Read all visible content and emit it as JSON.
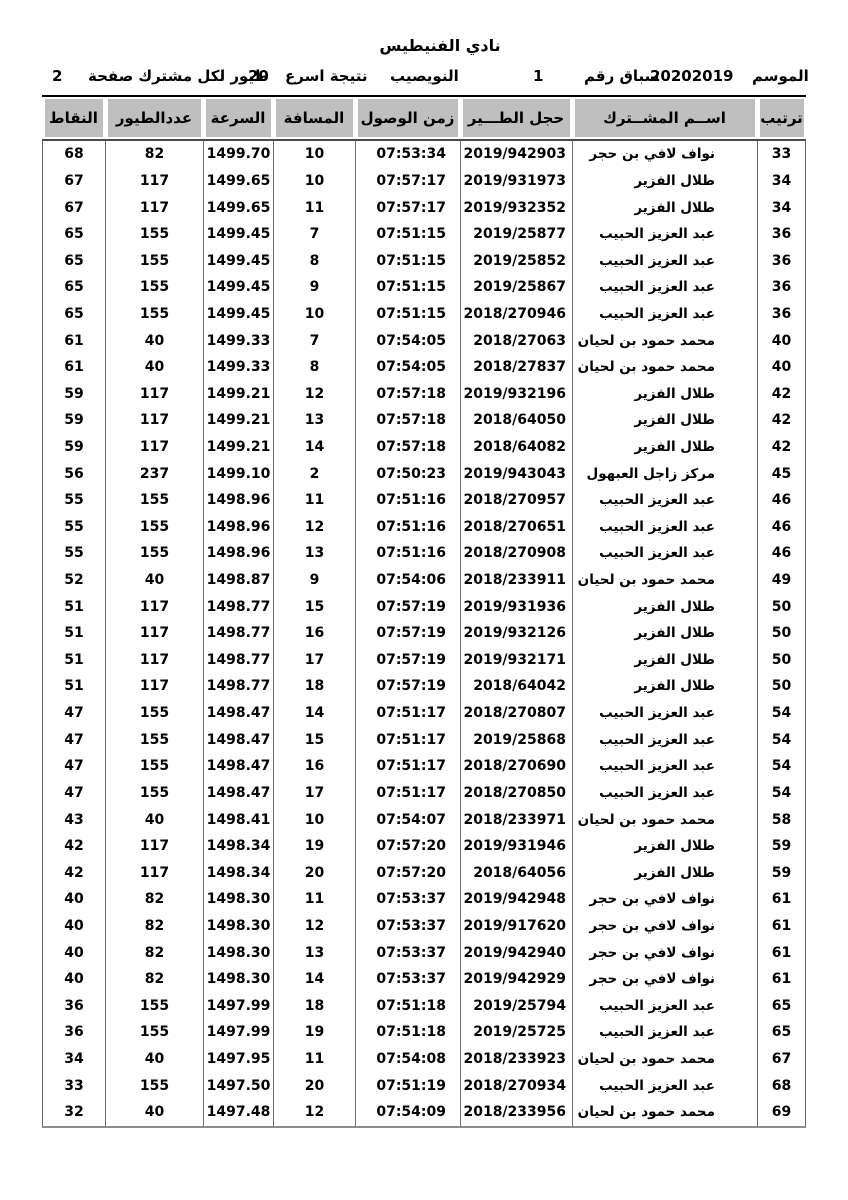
{
  "ui_colors": {
    "page_bg": "#ffffff",
    "text": "#000000",
    "header_cell_bg": "#bfbfbf",
    "table_top_border": "#000000",
    "grid_line": "#6b6b6b"
  },
  "header": {
    "club_name": "نادي الفنيطيس",
    "season_label": "الموسم",
    "season_value": "20202019",
    "race_label": "سباق رقم",
    "race_value": "1",
    "location": "النويصيب",
    "result_label": "نتيجة اسرع",
    "fastest_count": "20",
    "result_suffix": "طيور لكل مشترك صفحة",
    "page_number": "2"
  },
  "table": {
    "columns": [
      "ترتيب",
      "اســم المشــترك",
      "حجل الطـــير",
      "زمن الوصول",
      "المسافة",
      "السرعة",
      "عددالطيور",
      "النقاط"
    ],
    "row_fields": [
      "rank",
      "name",
      "ring",
      "time",
      "distance",
      "speed",
      "birds",
      "points"
    ],
    "rows": [
      [
        "33",
        "نواف لافي بن حجر",
        "2019/942903",
        "07:53:34",
        "10",
        "1499.70",
        "82",
        "68"
      ],
      [
        "34",
        "طلال الفزير",
        "2019/931973",
        "07:57:17",
        "10",
        "1499.65",
        "117",
        "67"
      ],
      [
        "34",
        "طلال الفزير",
        "2019/932352",
        "07:57:17",
        "11",
        "1499.65",
        "117",
        "67"
      ],
      [
        "36",
        "عبد العزيز الحبيب",
        "2019/25877",
        "07:51:15",
        "7",
        "1499.45",
        "155",
        "65"
      ],
      [
        "36",
        "عبد العزيز الحبيب",
        "2019/25852",
        "07:51:15",
        "8",
        "1499.45",
        "155",
        "65"
      ],
      [
        "36",
        "عبد العزيز الحبيب",
        "2019/25867",
        "07:51:15",
        "9",
        "1499.45",
        "155",
        "65"
      ],
      [
        "36",
        "عبد العزيز الحبيب",
        "2018/270946",
        "07:51:15",
        "10",
        "1499.45",
        "155",
        "65"
      ],
      [
        "40",
        "محمد حمود بن لحيان",
        "2018/27063",
        "07:54:05",
        "7",
        "1499.33",
        "40",
        "61"
      ],
      [
        "40",
        "محمد حمود بن لحيان",
        "2018/27837",
        "07:54:05",
        "8",
        "1499.33",
        "40",
        "61"
      ],
      [
        "42",
        "طلال الفزير",
        "2019/932196",
        "07:57:18",
        "12",
        "1499.21",
        "117",
        "59"
      ],
      [
        "42",
        "طلال الفزير",
        "2018/64050",
        "07:57:18",
        "13",
        "1499.21",
        "117",
        "59"
      ],
      [
        "42",
        "طلال الفزير",
        "2018/64082",
        "07:57:18",
        "14",
        "1499.21",
        "117",
        "59"
      ],
      [
        "45",
        "مركز زاجل العبهول",
        "2019/943043",
        "07:50:23",
        "2",
        "1499.10",
        "237",
        "56"
      ],
      [
        "46",
        "عبد العزيز الحبيب",
        "2018/270957",
        "07:51:16",
        "11",
        "1498.96",
        "155",
        "55"
      ],
      [
        "46",
        "عبد العزيز الحبيب",
        "2018/270651",
        "07:51:16",
        "12",
        "1498.96",
        "155",
        "55"
      ],
      [
        "46",
        "عبد العزيز الحبيب",
        "2018/270908",
        "07:51:16",
        "13",
        "1498.96",
        "155",
        "55"
      ],
      [
        "49",
        "محمد حمود بن لحيان",
        "2018/233911",
        "07:54:06",
        "9",
        "1498.87",
        "40",
        "52"
      ],
      [
        "50",
        "طلال الفزير",
        "2019/931936",
        "07:57:19",
        "15",
        "1498.77",
        "117",
        "51"
      ],
      [
        "50",
        "طلال الفزير",
        "2019/932126",
        "07:57:19",
        "16",
        "1498.77",
        "117",
        "51"
      ],
      [
        "50",
        "طلال الفزير",
        "2019/932171",
        "07:57:19",
        "17",
        "1498.77",
        "117",
        "51"
      ],
      [
        "50",
        "طلال الفزير",
        "2018/64042",
        "07:57:19",
        "18",
        "1498.77",
        "117",
        "51"
      ],
      [
        "54",
        "عبد العزيز الحبيب",
        "2018/270807",
        "07:51:17",
        "14",
        "1498.47",
        "155",
        "47"
      ],
      [
        "54",
        "عبد العزيز الحبيب",
        "2019/25868",
        "07:51:17",
        "15",
        "1498.47",
        "155",
        "47"
      ],
      [
        "54",
        "عبد العزيز الحبيب",
        "2018/270690",
        "07:51:17",
        "16",
        "1498.47",
        "155",
        "47"
      ],
      [
        "54",
        "عبد العزيز الحبيب",
        "2018/270850",
        "07:51:17",
        "17",
        "1498.47",
        "155",
        "47"
      ],
      [
        "58",
        "محمد حمود بن لحيان",
        "2018/233971",
        "07:54:07",
        "10",
        "1498.41",
        "40",
        "43"
      ],
      [
        "59",
        "طلال الفزير",
        "2019/931946",
        "07:57:20",
        "19",
        "1498.34",
        "117",
        "42"
      ],
      [
        "59",
        "طلال الفزير",
        "2018/64056",
        "07:57:20",
        "20",
        "1498.34",
        "117",
        "42"
      ],
      [
        "61",
        "نواف لافي بن حجر",
        "2019/942948",
        "07:53:37",
        "11",
        "1498.30",
        "82",
        "40"
      ],
      [
        "61",
        "نواف لافي بن حجر",
        "2019/917620",
        "07:53:37",
        "12",
        "1498.30",
        "82",
        "40"
      ],
      [
        "61",
        "نواف لافي بن حجر",
        "2019/942940",
        "07:53:37",
        "13",
        "1498.30",
        "82",
        "40"
      ],
      [
        "61",
        "نواف لافي بن حجر",
        "2019/942929",
        "07:53:37",
        "14",
        "1498.30",
        "82",
        "40"
      ],
      [
        "65",
        "عبد العزيز الحبيب",
        "2019/25794",
        "07:51:18",
        "18",
        "1497.99",
        "155",
        "36"
      ],
      [
        "65",
        "عبد العزيز الحبيب",
        "2019/25725",
        "07:51:18",
        "19",
        "1497.99",
        "155",
        "36"
      ],
      [
        "67",
        "محمد حمود بن لحيان",
        "2018/233923",
        "07:54:08",
        "11",
        "1497.95",
        "40",
        "34"
      ],
      [
        "68",
        "عبد العزيز الحبيب",
        "2018/270934",
        "07:51:19",
        "20",
        "1497.50",
        "155",
        "33"
      ],
      [
        "69",
        "محمد حمود بن لحيان",
        "2018/233956",
        "07:54:09",
        "12",
        "1497.48",
        "40",
        "32"
      ]
    ]
  }
}
